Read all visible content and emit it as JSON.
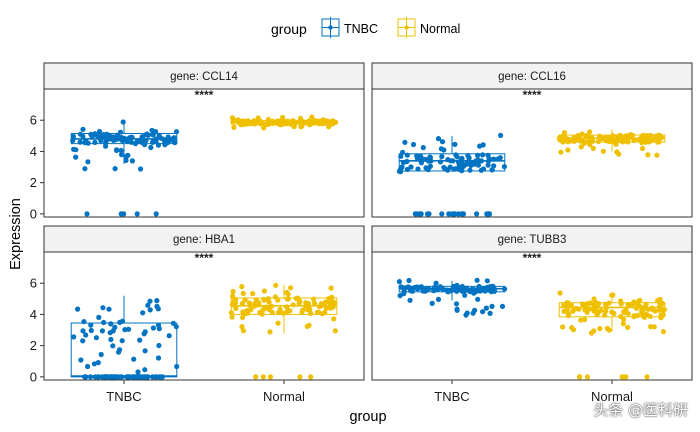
{
  "chart_data": {
    "type": "box",
    "legend": {
      "title": "group",
      "position": "top",
      "entries": [
        {
          "label": "TNBC",
          "color": "#0073C2"
        },
        {
          "label": "Normal",
          "color": "#EFC000"
        }
      ]
    },
    "xlabel": "group",
    "ylabel": "Expression",
    "categories": [
      "TNBC",
      "Normal"
    ],
    "ylim": [
      -0.2,
      8.0
    ],
    "yticks": [
      0,
      2,
      4,
      6
    ],
    "panels": [
      {
        "strip": "gene: CCL14",
        "significance": "****",
        "boxes": [
          {
            "group": "TNBC",
            "q1": 4.5,
            "median": 4.8,
            "q3": 5.15,
            "whisker_low": 3.2,
            "whisker_high": 5.9
          },
          {
            "group": "Normal",
            "q1": 5.75,
            "median": 5.88,
            "q3": 5.98,
            "whisker_low": 5.55,
            "whisker_high": 6.15
          }
        ],
        "points": [
          {
            "group": "TNBC",
            "n": 110,
            "low": 2.8,
            "high": 5.9,
            "zeros": 5
          },
          {
            "group": "Normal",
            "n": 110,
            "low": 5.5,
            "high": 6.2,
            "zeros": 0
          }
        ]
      },
      {
        "strip": "gene: CCL16",
        "significance": "****",
        "boxes": [
          {
            "group": "TNBC",
            "q1": 2.75,
            "median": 3.4,
            "q3": 3.85,
            "whisker_low": 2.7,
            "whisker_high": 5.0
          },
          {
            "group": "Normal",
            "q1": 4.6,
            "median": 4.85,
            "q3": 5.05,
            "whisker_low": 4.0,
            "whisker_high": 5.4
          }
        ],
        "points": [
          {
            "group": "TNBC",
            "n": 90,
            "low": 2.7,
            "high": 5.1,
            "zeros": 20
          },
          {
            "group": "Normal",
            "n": 110,
            "low": 3.7,
            "high": 5.4,
            "zeros": 0
          }
        ]
      },
      {
        "strip": "gene: HBA1",
        "significance": "****",
        "boxes": [
          {
            "group": "TNBC",
            "q1": 0.0,
            "median": 0.05,
            "q3": 3.45,
            "whisker_low": 0.0,
            "whisker_high": 5.2
          },
          {
            "group": "Normal",
            "q1": 4.0,
            "median": 4.55,
            "q3": 5.05,
            "whisker_low": 2.8,
            "whisker_high": 5.9
          }
        ],
        "points": [
          {
            "group": "TNBC",
            "n": 55,
            "low": 2.8,
            "high": 4.9,
            "zeros": 55
          },
          {
            "group": "Normal",
            "n": 110,
            "low": 2.8,
            "high": 5.9,
            "zeros": 5
          }
        ]
      },
      {
        "strip": "gene: TUBB3",
        "significance": "****",
        "boxes": [
          {
            "group": "TNBC",
            "q1": 5.45,
            "median": 5.65,
            "q3": 5.8,
            "whisker_low": 4.9,
            "whisker_high": 6.15
          },
          {
            "group": "Normal",
            "q1": 3.85,
            "median": 4.45,
            "q3": 4.75,
            "whisker_low": 2.9,
            "whisker_high": 5.4
          }
        ],
        "points": [
          {
            "group": "TNBC",
            "n": 110,
            "low": 3.9,
            "high": 6.2,
            "zeros": 0
          },
          {
            "group": "Normal",
            "n": 110,
            "low": 2.8,
            "high": 5.4,
            "zeros": 6
          }
        ]
      }
    ]
  },
  "watermark": "头条 @医科研"
}
